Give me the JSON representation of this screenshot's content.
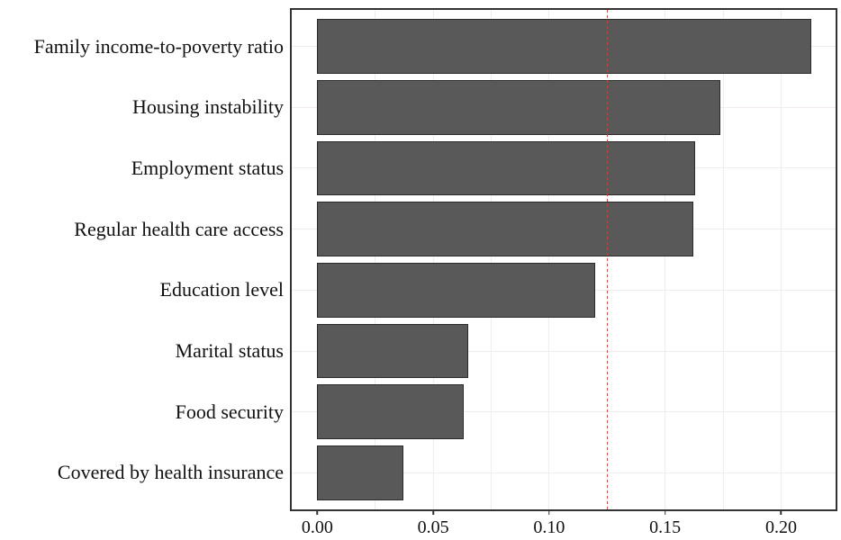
{
  "figure": {
    "background": "#ffffff"
  },
  "chart_data": {
    "type": "bar",
    "orientation": "horizontal",
    "title": "",
    "subtitle": "",
    "xlabel": "",
    "ylabel": "",
    "legend": null,
    "categories": [
      "Family income-to-poverty ratio",
      "Housing instability",
      "Employment status",
      "Regular health care access",
      "Education level",
      "Marital status",
      "Food security",
      "Covered by health insurance"
    ],
    "values": [
      0.213,
      0.174,
      0.163,
      0.162,
      0.12,
      0.065,
      0.063,
      0.037
    ],
    "xticks": [
      0.0,
      0.05,
      0.1,
      0.15,
      0.2
    ],
    "xtick_labels": [
      "0.00",
      "0.05",
      "0.10",
      "0.15",
      "0.20"
    ],
    "xlim": [
      -0.011,
      0.2235
    ],
    "grid_on": true,
    "grid_x_values": [
      0.025,
      0.05,
      0.075,
      0.1,
      0.125,
      0.15,
      0.175,
      0.2
    ],
    "reference_line": {
      "value": 0.125,
      "style": "dashed",
      "color": "#bc4a43"
    },
    "colors": {
      "bar_fill": "#595959",
      "bar_stroke": "#2b2b2b",
      "panel_border": "#333333",
      "grid": "#f1edec",
      "tick": "#333333",
      "text": "#111111",
      "background": "#ffffff"
    }
  }
}
